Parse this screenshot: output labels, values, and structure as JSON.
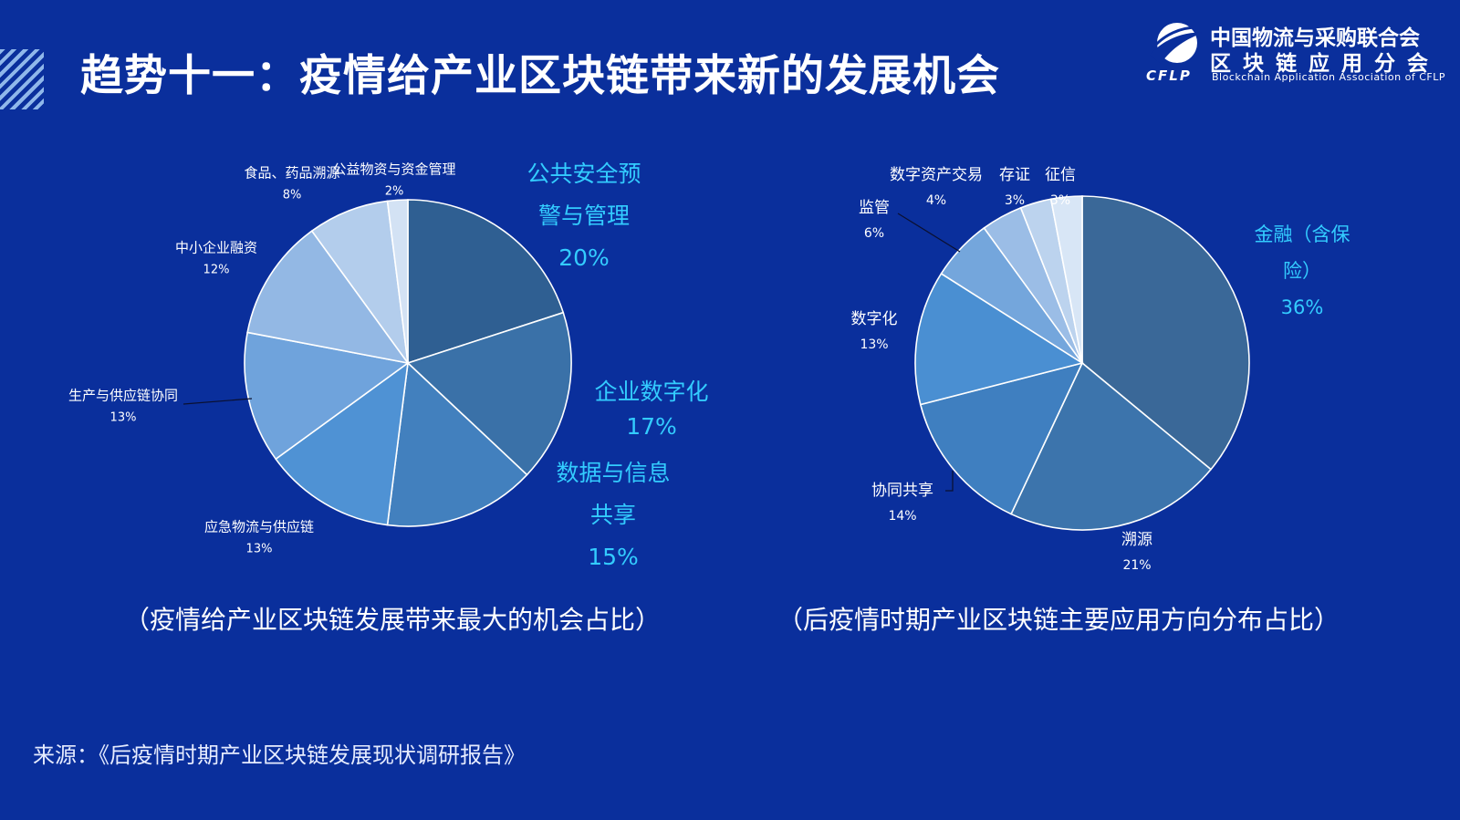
{
  "header": {
    "title": "趋势十一：疫情给产业区块链带来新的发展机会"
  },
  "logo": {
    "line1": "中国物流与采购联合会",
    "line2": "区块链应用分会",
    "english": "Blockchain Application Association of CFLP",
    "abbr": "CFLP"
  },
  "captions": {
    "left": "（疫情给产业区块链发展带来最大的机会占比）",
    "right": "（后疫情时期产业区块链主要应用方向分布占比）"
  },
  "source": "来源：《后疫情时期产业区块链发展现状调研报告》",
  "colors": {
    "background": "#0a2f9c",
    "highlight_label": "#33ccff",
    "label": "#ffffff"
  },
  "chart_data": [
    {
      "type": "pie",
      "title": "",
      "slices": [
        {
          "label": "公共安全预警与管理",
          "label_lines": [
            "公共安全预",
            "警与管理"
          ],
          "value": 20,
          "value_text": "20%",
          "color": "#2f5f92",
          "highlight": true
        },
        {
          "label": "企业数字化",
          "label_lines": [
            "企业数字化"
          ],
          "value": 17,
          "value_text": "17%",
          "color": "#3a71a8",
          "highlight": true
        },
        {
          "label": "数据与信息共享",
          "label_lines": [
            "数据与信息",
            "共享"
          ],
          "value": 15,
          "value_text": "15%",
          "color": "#4280be",
          "highlight": true
        },
        {
          "label": "应急物流与供应链",
          "label_lines": [
            "应急物流与供应链"
          ],
          "value": 13,
          "value_text": "13%",
          "color": "#4f92d4",
          "highlight": false
        },
        {
          "label": "生产与供应链协同",
          "label_lines": [
            "生产与供应链协同"
          ],
          "value": 13,
          "value_text": "13%",
          "color": "#6fa3dc",
          "highlight": false
        },
        {
          "label": "中小企业融资",
          "label_lines": [
            "中小企业融资"
          ],
          "value": 12,
          "value_text": "12%",
          "color": "#93b8e4",
          "highlight": false
        },
        {
          "label": "食品、药品溯源",
          "label_lines": [
            "食品、药品溯源"
          ],
          "value": 8,
          "value_text": "8%",
          "color": "#b3cdec",
          "highlight": false
        },
        {
          "label": "公益物资与资金管理",
          "label_lines": [
            "公益物资与资金管理"
          ],
          "value": 2,
          "value_text": "2%",
          "color": "#d3e2f4",
          "highlight": false
        }
      ]
    },
    {
      "type": "pie",
      "title": "",
      "slices": [
        {
          "label": "金融（含保险）",
          "label_lines": [
            "金融（含保",
            "险）"
          ],
          "value": 36,
          "value_text": "36%",
          "color": "#3a6898",
          "highlight": true
        },
        {
          "label": "溯源",
          "label_lines": [
            "溯源"
          ],
          "value": 21,
          "value_text": "21%",
          "color": "#3c74ac",
          "highlight": false
        },
        {
          "label": "协同共享",
          "label_lines": [
            "协同共享"
          ],
          "value": 14,
          "value_text": "14%",
          "color": "#3f7fc0",
          "highlight": false
        },
        {
          "label": "数字化",
          "label_lines": [
            "数字化"
          ],
          "value": 13,
          "value_text": "13%",
          "color": "#4a8fd2",
          "highlight": false
        },
        {
          "label": "监管",
          "label_lines": [
            "监管"
          ],
          "value": 6,
          "value_text": "6%",
          "color": "#74a6dc",
          "highlight": false
        },
        {
          "label": "数字资产交易",
          "label_lines": [
            "数字资产交易"
          ],
          "value": 4,
          "value_text": "4%",
          "color": "#9bbde6",
          "highlight": false
        },
        {
          "label": "存证",
          "label_lines": [
            "存证"
          ],
          "value": 3,
          "value_text": "3%",
          "color": "#bcd3ee",
          "highlight": false
        },
        {
          "label": "征信",
          "label_lines": [
            "征信"
          ],
          "value": 3,
          "value_text": "3%",
          "color": "#d8e6f6",
          "highlight": false
        }
      ]
    }
  ]
}
